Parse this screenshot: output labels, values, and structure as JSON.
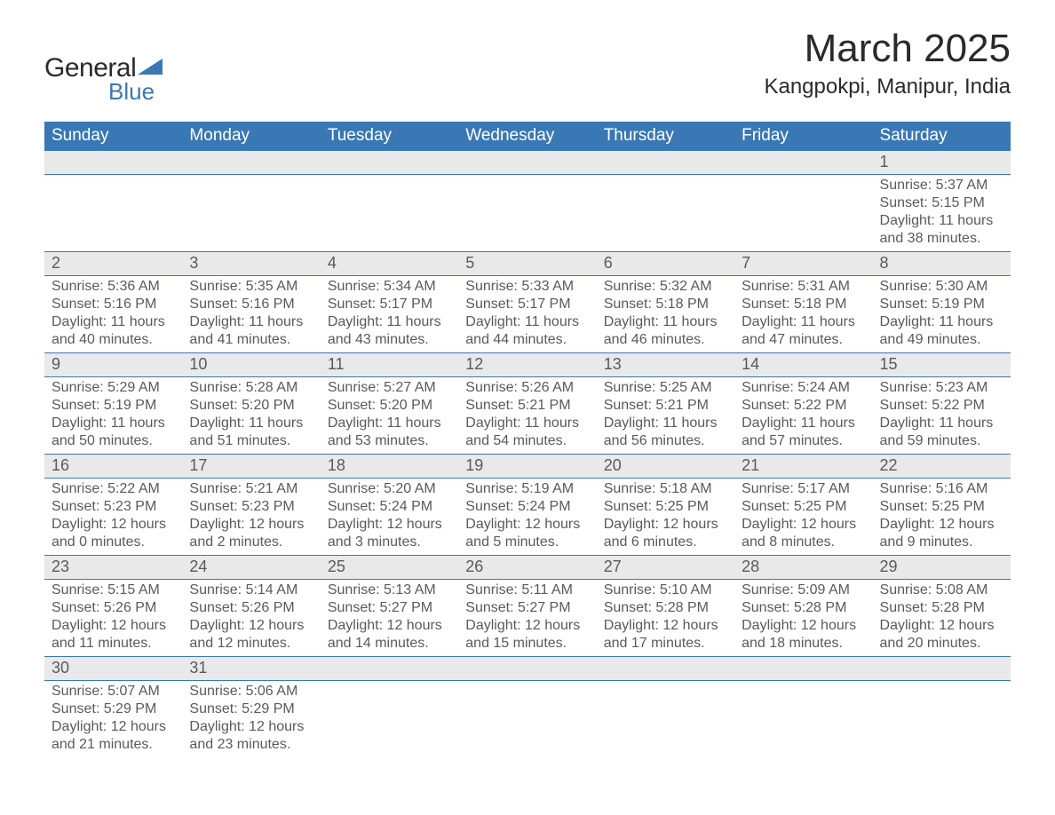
{
  "logo": {
    "text1": "General",
    "text2": "Blue",
    "flag_color": "#3a78b5"
  },
  "title": "March 2025",
  "location": "Kangpokpi, Manipur, India",
  "weekday_bg": "#3a78b5",
  "weekday_fg": "#ffffff",
  "daynum_bg": "#e9e9e9",
  "border_color": "#3a78b5",
  "text_color": "#5a5a5a",
  "title_color": "#2a2a2a",
  "body_bg": "#ffffff",
  "weekdays": [
    "Sunday",
    "Monday",
    "Tuesday",
    "Wednesday",
    "Thursday",
    "Friday",
    "Saturday"
  ],
  "weeks": [
    [
      null,
      null,
      null,
      null,
      null,
      null,
      {
        "n": "1",
        "sr": "5:37 AM",
        "ss": "5:15 PM",
        "dl": "11 hours and 38 minutes."
      }
    ],
    [
      {
        "n": "2",
        "sr": "5:36 AM",
        "ss": "5:16 PM",
        "dl": "11 hours and 40 minutes."
      },
      {
        "n": "3",
        "sr": "5:35 AM",
        "ss": "5:16 PM",
        "dl": "11 hours and 41 minutes."
      },
      {
        "n": "4",
        "sr": "5:34 AM",
        "ss": "5:17 PM",
        "dl": "11 hours and 43 minutes."
      },
      {
        "n": "5",
        "sr": "5:33 AM",
        "ss": "5:17 PM",
        "dl": "11 hours and 44 minutes."
      },
      {
        "n": "6",
        "sr": "5:32 AM",
        "ss": "5:18 PM",
        "dl": "11 hours and 46 minutes."
      },
      {
        "n": "7",
        "sr": "5:31 AM",
        "ss": "5:18 PM",
        "dl": "11 hours and 47 minutes."
      },
      {
        "n": "8",
        "sr": "5:30 AM",
        "ss": "5:19 PM",
        "dl": "11 hours and 49 minutes."
      }
    ],
    [
      {
        "n": "9",
        "sr": "5:29 AM",
        "ss": "5:19 PM",
        "dl": "11 hours and 50 minutes."
      },
      {
        "n": "10",
        "sr": "5:28 AM",
        "ss": "5:20 PM",
        "dl": "11 hours and 51 minutes."
      },
      {
        "n": "11",
        "sr": "5:27 AM",
        "ss": "5:20 PM",
        "dl": "11 hours and 53 minutes."
      },
      {
        "n": "12",
        "sr": "5:26 AM",
        "ss": "5:21 PM",
        "dl": "11 hours and 54 minutes."
      },
      {
        "n": "13",
        "sr": "5:25 AM",
        "ss": "5:21 PM",
        "dl": "11 hours and 56 minutes."
      },
      {
        "n": "14",
        "sr": "5:24 AM",
        "ss": "5:22 PM",
        "dl": "11 hours and 57 minutes."
      },
      {
        "n": "15",
        "sr": "5:23 AM",
        "ss": "5:22 PM",
        "dl": "11 hours and 59 minutes."
      }
    ],
    [
      {
        "n": "16",
        "sr": "5:22 AM",
        "ss": "5:23 PM",
        "dl": "12 hours and 0 minutes."
      },
      {
        "n": "17",
        "sr": "5:21 AM",
        "ss": "5:23 PM",
        "dl": "12 hours and 2 minutes."
      },
      {
        "n": "18",
        "sr": "5:20 AM",
        "ss": "5:24 PM",
        "dl": "12 hours and 3 minutes."
      },
      {
        "n": "19",
        "sr": "5:19 AM",
        "ss": "5:24 PM",
        "dl": "12 hours and 5 minutes."
      },
      {
        "n": "20",
        "sr": "5:18 AM",
        "ss": "5:25 PM",
        "dl": "12 hours and 6 minutes."
      },
      {
        "n": "21",
        "sr": "5:17 AM",
        "ss": "5:25 PM",
        "dl": "12 hours and 8 minutes."
      },
      {
        "n": "22",
        "sr": "5:16 AM",
        "ss": "5:25 PM",
        "dl": "12 hours and 9 minutes."
      }
    ],
    [
      {
        "n": "23",
        "sr": "5:15 AM",
        "ss": "5:26 PM",
        "dl": "12 hours and 11 minutes."
      },
      {
        "n": "24",
        "sr": "5:14 AM",
        "ss": "5:26 PM",
        "dl": "12 hours and 12 minutes."
      },
      {
        "n": "25",
        "sr": "5:13 AM",
        "ss": "5:27 PM",
        "dl": "12 hours and 14 minutes."
      },
      {
        "n": "26",
        "sr": "5:11 AM",
        "ss": "5:27 PM",
        "dl": "12 hours and 15 minutes."
      },
      {
        "n": "27",
        "sr": "5:10 AM",
        "ss": "5:28 PM",
        "dl": "12 hours and 17 minutes."
      },
      {
        "n": "28",
        "sr": "5:09 AM",
        "ss": "5:28 PM",
        "dl": "12 hours and 18 minutes."
      },
      {
        "n": "29",
        "sr": "5:08 AM",
        "ss": "5:28 PM",
        "dl": "12 hours and 20 minutes."
      }
    ],
    [
      {
        "n": "30",
        "sr": "5:07 AM",
        "ss": "5:29 PM",
        "dl": "12 hours and 21 minutes."
      },
      {
        "n": "31",
        "sr": "5:06 AM",
        "ss": "5:29 PM",
        "dl": "12 hours and 23 minutes."
      },
      null,
      null,
      null,
      null,
      null
    ]
  ],
  "labels": {
    "sunrise": "Sunrise: ",
    "sunset": "Sunset: ",
    "daylight": "Daylight: "
  }
}
